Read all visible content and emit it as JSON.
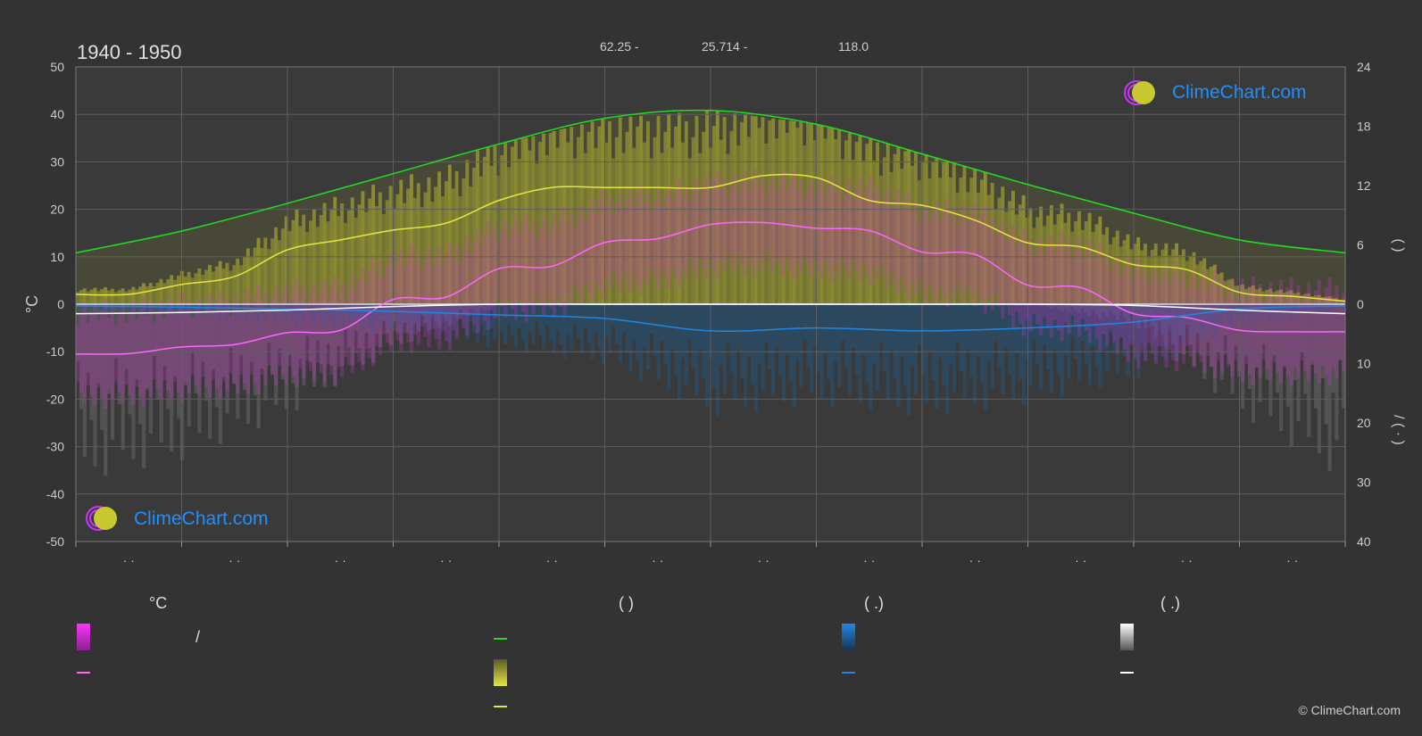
{
  "period_label": "1940 - 1950",
  "coords": {
    "latitude": "62.25 -",
    "longitude": "25.714 -",
    "elevation": "118.0"
  },
  "brand": {
    "logo_text": "ClimeChart.com",
    "copyright": "© ClimeChart.com"
  },
  "legend": {
    "temp_header": "°C",
    "sun_header": "(          )",
    "rain_header": "(    .)",
    "snow_header": "(    .)",
    "temp_range_text": "/"
  },
  "colors": {
    "background": "#333333",
    "grid": "#555555",
    "daylight": "#22dd22",
    "sunshine": "#e6e640",
    "temp_mean": "#ff66ff",
    "temp_band": "#cc33cc",
    "rain": "#1e88e5",
    "snow": "#ffffff"
  },
  "chart_data": {
    "type": "line",
    "left_axis": {
      "label": "°C",
      "range": [
        -50,
        50
      ],
      "ticks": [
        50,
        40,
        30,
        20,
        10,
        0,
        -10,
        -20,
        -30,
        -40,
        -50
      ]
    },
    "right_axis_top": {
      "label": "(   )",
      "range": [
        0,
        24
      ],
      "ticks": [
        24,
        18,
        12,
        6,
        0
      ]
    },
    "right_axis_bottom": {
      "label": "/ (  ·  )",
      "range": [
        0,
        40
      ],
      "ticks": [
        0,
        10,
        20,
        30,
        40
      ]
    },
    "month_labels": [
      "· ·",
      "· ·",
      "· ·",
      "· ·",
      "· ·",
      "· ·",
      "· ·",
      "· ·",
      "· ·",
      "· ·",
      "· ·",
      "· ·"
    ],
    "grid": true,
    "series": [
      {
        "name": "daylight",
        "unit": "h",
        "x": [
          0,
          1,
          2,
          3,
          4,
          5,
          6,
          7,
          8,
          9,
          10,
          11,
          12
        ],
        "values": [
          5.2,
          7.4,
          10.2,
          13.2,
          16.2,
          18.8,
          19.6,
          18.2,
          15.2,
          12.1,
          9.2,
          6.5,
          5.2
        ]
      },
      {
        "name": "sunshine",
        "unit": "h",
        "x": [
          0,
          0.5,
          1,
          1.5,
          2,
          2.5,
          3,
          3.5,
          4,
          4.5,
          5,
          5.5,
          6,
          6.5,
          7,
          7.5,
          8,
          8.5,
          9,
          9.5,
          10,
          10.5,
          11,
          11.5,
          12
        ],
        "values": [
          1.0,
          1.0,
          2.0,
          2.8,
          5.5,
          6.5,
          7.5,
          8.2,
          10.5,
          11.8,
          11.8,
          11.8,
          11.8,
          13.0,
          12.8,
          10.5,
          10.0,
          8.5,
          6.2,
          5.8,
          4.0,
          3.5,
          1.2,
          0.8,
          0.3
        ]
      },
      {
        "name": "temp_mean",
        "unit": "°C",
        "x": [
          0,
          0.5,
          1,
          1.5,
          2,
          2.5,
          3,
          3.5,
          4,
          4.5,
          5,
          5.5,
          6,
          6.5,
          7,
          7.5,
          8,
          8.5,
          9,
          9.5,
          10,
          10.5,
          11,
          11.5,
          12
        ],
        "values": [
          -10.5,
          -10.4,
          -9,
          -8.5,
          -6,
          -5.5,
          1,
          1.5,
          7.5,
          8,
          13,
          13.8,
          16.8,
          17.2,
          16,
          15.5,
          11,
          10.5,
          4,
          3.5,
          -2,
          -2.8,
          -5.5,
          -5.8,
          -5.8
        ]
      },
      {
        "name": "rain",
        "unit": "mm",
        "x": [
          0,
          1,
          2,
          3,
          4,
          5,
          6,
          7,
          8,
          9,
          10,
          11,
          12
        ],
        "values": [
          0.3,
          0.5,
          0.8,
          1.2,
          1.8,
          2.4,
          4.5,
          4.0,
          4.5,
          4.0,
          3.0,
          0.8,
          0.3
        ]
      },
      {
        "name": "snow",
        "unit": "mm",
        "x": [
          0,
          1,
          2,
          3,
          4,
          5,
          6,
          7,
          8,
          9,
          10,
          11,
          12
        ],
        "values": [
          1.6,
          1.4,
          1.0,
          0.4,
          0.0,
          0.0,
          0.0,
          0.0,
          0.0,
          0.0,
          0.2,
          1.0,
          1.6
        ]
      }
    ]
  }
}
